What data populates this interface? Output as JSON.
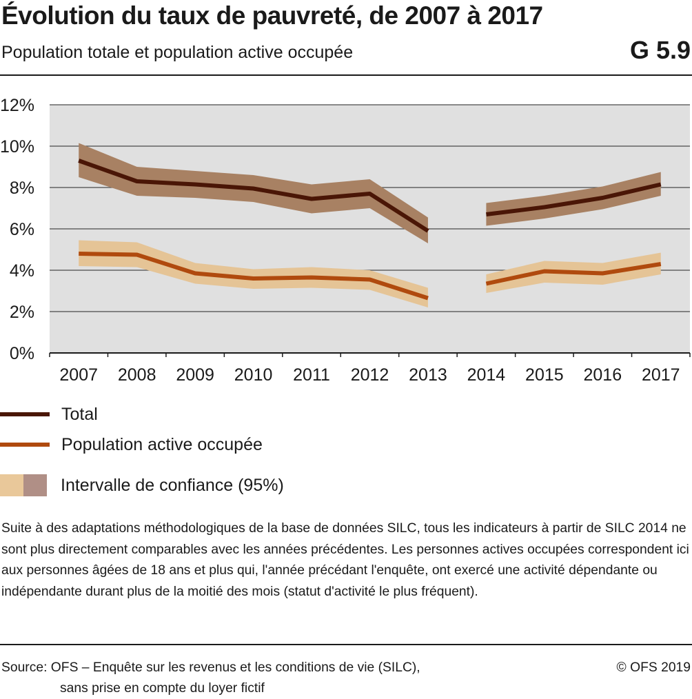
{
  "header": {
    "title": "Évolution du taux de pauvreté, de 2007 à 2017",
    "subtitle": "Population totale et population active occupée",
    "code": "G 5.9"
  },
  "chart_data": {
    "type": "line",
    "x": [
      "2007",
      "2008",
      "2009",
      "2010",
      "2011",
      "2012",
      "2013",
      "2014",
      "2015",
      "2016",
      "2017"
    ],
    "ylim": [
      0,
      12
    ],
    "yticks": [
      "0%",
      "2%",
      "4%",
      "6%",
      "8%",
      "10%",
      "12%"
    ],
    "grid": true,
    "series": [
      {
        "name": "Total",
        "color": "#4a1606",
        "band_color": "#a88163",
        "values": [
          9.3,
          8.3,
          8.15,
          7.95,
          7.45,
          7.7,
          5.9,
          6.7,
          7.05,
          7.5,
          8.15
        ],
        "lower": [
          8.5,
          7.6,
          7.5,
          7.3,
          6.75,
          7.0,
          5.3,
          6.15,
          6.5,
          6.95,
          7.6
        ],
        "upper": [
          10.15,
          9.0,
          8.8,
          8.6,
          8.15,
          8.4,
          6.55,
          7.25,
          7.6,
          8.05,
          8.75
        ]
      },
      {
        "name": "Population active occupée",
        "color": "#b04a0e",
        "band_color": "#e5c496",
        "values": [
          4.8,
          4.75,
          3.85,
          3.6,
          3.65,
          3.55,
          2.65,
          3.35,
          3.95,
          3.85,
          4.3
        ],
        "lower": [
          4.2,
          4.15,
          3.35,
          3.1,
          3.15,
          3.05,
          2.2,
          2.9,
          3.4,
          3.3,
          3.8
        ],
        "upper": [
          5.45,
          5.35,
          4.35,
          4.05,
          4.15,
          4.0,
          3.15,
          3.8,
          4.45,
          4.35,
          4.85
        ]
      }
    ],
    "segments": [
      [
        0,
        6
      ],
      [
        7,
        10
      ]
    ],
    "plot_bg": "#e0e0e0",
    "grid_color": "#4a4a4a"
  },
  "legend": {
    "total": "Total",
    "active": "Population active occupée",
    "ci": "Intervalle de confiance (95%)",
    "ci_colors": [
      "#e9c89a",
      "#b08f86"
    ]
  },
  "note": "Suite à des adaptations méthodologiques de la base de données SILC, tous les indicateurs à partir de SILC 2014 ne sont plus directement comparables avec les années précédentes. Les personnes actives occupées correspondent ici aux personnes âgées de 18 ans et plus qui, l'année précédant l'enquête, ont exercé une activité dépendante ou indépendante durant plus de la moitié des mois (statut d'activité le plus fréquent).",
  "footer": {
    "source_line1": "Source: OFS – Enquête sur les revenus et les conditions de vie (SILC),",
    "source_line2": "sans prise en compte du loyer fictif",
    "copyright": "© OFS 2019"
  }
}
